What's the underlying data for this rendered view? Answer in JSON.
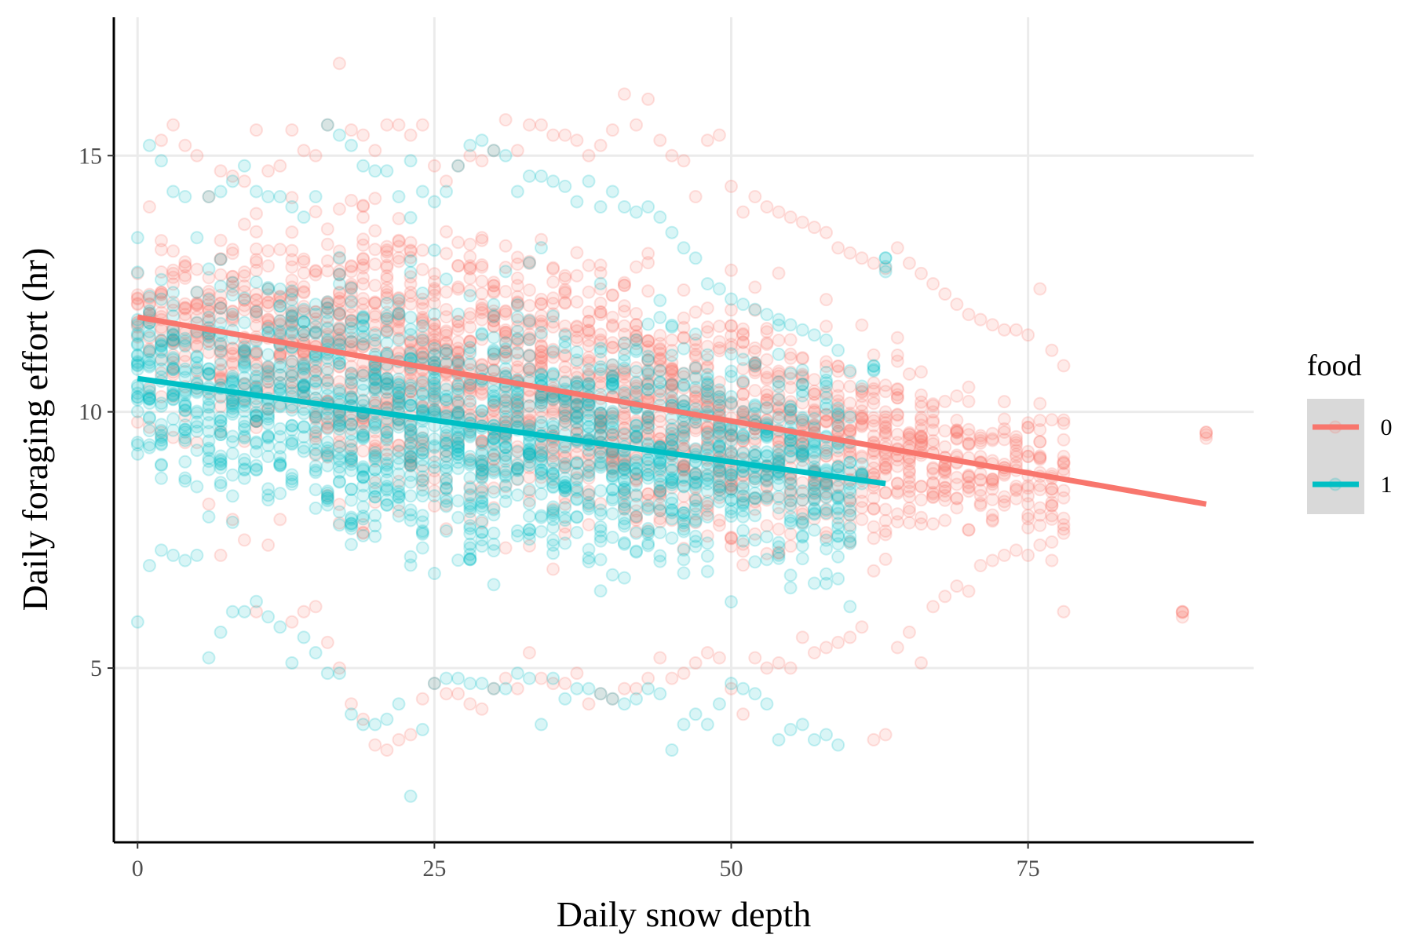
{
  "chart_data": {
    "type": "scatter",
    "xlabel": "Daily snow depth",
    "ylabel": "Daily foraging effort (hr)",
    "xlim": [
      -2,
      94
    ],
    "ylim": [
      1.6,
      17.7
    ],
    "x_ticks": [
      {
        "value": 0,
        "label": "0"
      },
      {
        "value": 25,
        "label": "25"
      },
      {
        "value": 50,
        "label": "50"
      },
      {
        "value": 75,
        "label": "75"
      }
    ],
    "y_ticks": [
      {
        "value": 5,
        "label": "5"
      },
      {
        "value": 10,
        "label": "10"
      },
      {
        "value": 15,
        "label": "15"
      }
    ],
    "grid": true,
    "legend": {
      "title": "food",
      "position": "right"
    },
    "point_alpha": 0.15,
    "series": [
      {
        "name": "0",
        "color": "#F8766D",
        "trend": {
          "x": [
            0,
            90
          ],
          "y": [
            11.85,
            8.2
          ]
        },
        "points": {
          "x": [
            0,
            1,
            2,
            3,
            4,
            5,
            6,
            7,
            8,
            9,
            10,
            11,
            12,
            13,
            14,
            15,
            16,
            17,
            18,
            19,
            20,
            21,
            22,
            23,
            24,
            25,
            26,
            27,
            28,
            29,
            30,
            31,
            32,
            33,
            34,
            35,
            36,
            37,
            38,
            39,
            40,
            41,
            42,
            43,
            44,
            45,
            46,
            47,
            48,
            49,
            50,
            51,
            52,
            53,
            54,
            55,
            56,
            57,
            58,
            59,
            60,
            61,
            62,
            63,
            64,
            65,
            66,
            67,
            68,
            69,
            70,
            71,
            72,
            73,
            74,
            75,
            76,
            77,
            78,
            88,
            90
          ],
          "y_min": [
            9.8,
            9.7,
            9.6,
            9.5,
            9.4,
            9.4,
            8.2,
            7.2,
            7.9,
            7.5,
            6.1,
            7.4,
            7.9,
            5.9,
            6.1,
            6.2,
            5.5,
            5.0,
            4.3,
            4.0,
            3.5,
            3.4,
            3.6,
            3.7,
            4.4,
            4.7,
            4.5,
            4.5,
            4.3,
            4.2,
            4.6,
            4.8,
            4.6,
            5.3,
            4.8,
            4.7,
            4.7,
            4.9,
            4.3,
            4.5,
            4.4,
            4.6,
            4.6,
            4.8,
            5.2,
            4.8,
            4.9,
            5.1,
            5.3,
            5.2,
            4.6,
            4.1,
            5.2,
            5.0,
            5.1,
            5.0,
            5.6,
            5.3,
            5.4,
            5.5,
            5.6,
            5.8,
            3.6,
            3.7,
            5.4,
            5.7,
            5.1,
            6.2,
            6.4,
            6.6,
            6.5,
            7.0,
            7.1,
            7.2,
            7.3,
            7.2,
            7.4,
            7.1,
            6.1,
            6.1,
            9.6
          ],
          "y_max": [
            12.7,
            14.0,
            15.3,
            15.6,
            15.2,
            15.0,
            14.2,
            14.7,
            14.6,
            14.5,
            15.5,
            14.7,
            14.8,
            15.5,
            15.1,
            15.0,
            15.6,
            16.8,
            15.5,
            15.4,
            15.1,
            15.6,
            15.6,
            15.4,
            15.6,
            14.8,
            14.5,
            14.8,
            15.0,
            14.9,
            15.1,
            15.7,
            15.1,
            15.6,
            15.6,
            15.4,
            15.4,
            15.3,
            15.0,
            15.2,
            15.5,
            16.2,
            15.6,
            16.1,
            15.3,
            15.0,
            14.9,
            14.2,
            15.3,
            15.4,
            14.4,
            13.9,
            14.2,
            14.0,
            13.9,
            13.8,
            13.7,
            13.6,
            13.5,
            13.2,
            13.1,
            13.0,
            12.9,
            12.8,
            13.2,
            12.9,
            12.7,
            12.5,
            12.3,
            12.1,
            11.9,
            11.8,
            11.7,
            11.6,
            11.6,
            11.5,
            12.4,
            11.2,
            10.9,
            6.1,
            9.6
          ]
        }
      },
      {
        "name": "1",
        "color": "#00BFC4",
        "trend": {
          "x": [
            0,
            63
          ],
          "y": [
            10.65,
            8.6
          ]
        },
        "points": {
          "x": [
            0,
            1,
            2,
            3,
            4,
            5,
            6,
            7,
            8,
            9,
            10,
            11,
            12,
            13,
            14,
            15,
            16,
            17,
            18,
            19,
            20,
            21,
            22,
            23,
            24,
            25,
            26,
            27,
            28,
            29,
            30,
            31,
            32,
            33,
            34,
            35,
            36,
            37,
            38,
            39,
            40,
            41,
            42,
            43,
            44,
            45,
            46,
            47,
            48,
            49,
            50,
            51,
            52,
            53,
            54,
            55,
            56,
            57,
            58,
            59,
            60,
            61,
            62,
            63
          ],
          "y_min": [
            5.9,
            7.0,
            7.3,
            7.2,
            7.1,
            7.2,
            5.2,
            5.7,
            6.1,
            6.1,
            6.3,
            6.0,
            5.8,
            5.1,
            5.6,
            5.3,
            4.9,
            4.9,
            4.1,
            3.9,
            3.9,
            4.0,
            4.3,
            2.5,
            3.8,
            4.7,
            4.8,
            4.8,
            4.7,
            4.7,
            4.6,
            4.6,
            4.9,
            4.8,
            3.9,
            4.8,
            4.4,
            4.6,
            4.6,
            4.5,
            4.4,
            4.3,
            4.4,
            4.6,
            4.5,
            3.4,
            3.9,
            4.1,
            3.9,
            4.3,
            4.7,
            4.6,
            4.5,
            4.3,
            3.6,
            3.8,
            3.9,
            3.6,
            3.7,
            3.5,
            6.2,
            8.6,
            10.8,
            13.0
          ],
          "y_max": [
            13.4,
            15.2,
            14.9,
            14.3,
            14.2,
            13.4,
            14.2,
            14.3,
            14.5,
            14.8,
            14.3,
            14.2,
            14.2,
            14.0,
            13.8,
            14.2,
            15.6,
            15.4,
            15.2,
            14.8,
            14.7,
            14.7,
            14.2,
            14.9,
            14.3,
            14.1,
            14.3,
            14.8,
            15.2,
            15.3,
            15.1,
            15.0,
            14.3,
            14.6,
            14.6,
            14.5,
            14.4,
            14.1,
            14.5,
            14.0,
            14.3,
            14.0,
            13.9,
            14.0,
            13.8,
            13.5,
            13.2,
            13.0,
            12.5,
            12.4,
            12.2,
            12.1,
            12.0,
            11.9,
            11.8,
            11.7,
            11.6,
            11.5,
            11.4,
            11.2,
            10.8,
            10.5,
            10.9,
            13.0
          ]
        }
      }
    ]
  }
}
